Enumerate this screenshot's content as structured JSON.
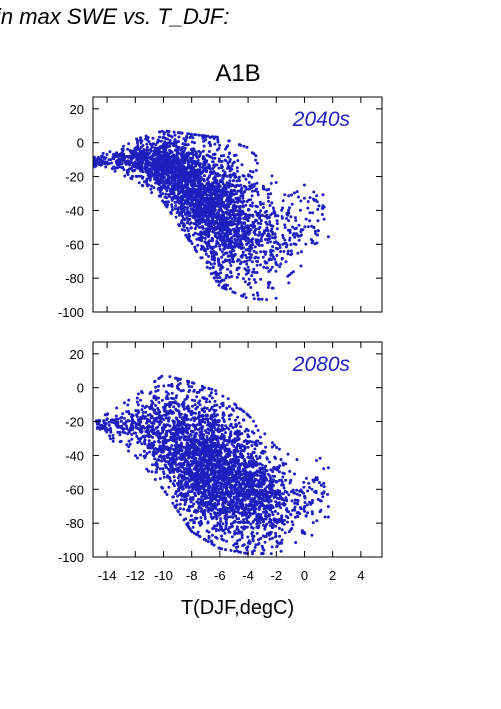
{
  "figure": {
    "title": "in max SWE vs. T_DJF:",
    "scenario": "A1B",
    "marker_color": "#1f1fbf"
  },
  "chart_data": [
    {
      "type": "scatter",
      "panel_label": "2040s",
      "xlim": [
        -15,
        5.5
      ],
      "ylim": [
        -100,
        27
      ],
      "xticks": [
        -14,
        -12,
        -10,
        -8,
        -6,
        -4,
        -2,
        0,
        2,
        4
      ],
      "yticks": [
        20,
        0,
        -20,
        -40,
        -60,
        -80,
        -100
      ],
      "xlabel": "",
      "ylabel": "",
      "grid": false,
      "point_cloud": {
        "count": 3200,
        "upper_edge": [
          [
            -15,
            -8
          ],
          [
            -12,
            2
          ],
          [
            -10,
            7
          ],
          [
            -8,
            5
          ],
          [
            -6,
            3
          ],
          [
            -4,
            -3
          ],
          [
            -2,
            -20
          ],
          [
            0,
            -25
          ],
          [
            1.5,
            -20
          ]
        ],
        "lower_edge": [
          [
            -15,
            -14
          ],
          [
            -12,
            -22
          ],
          [
            -10,
            -35
          ],
          [
            -8,
            -60
          ],
          [
            -6,
            -85
          ],
          [
            -4,
            -92
          ],
          [
            -2,
            -93
          ],
          [
            0,
            -70
          ],
          [
            1.5,
            -62
          ]
        ],
        "density_center": [
          -7.5,
          -30
        ]
      }
    },
    {
      "type": "scatter",
      "panel_label": "2080s",
      "xlim": [
        -15,
        5.5
      ],
      "ylim": [
        -100,
        27
      ],
      "xticks": [
        -14,
        -12,
        -10,
        -8,
        -6,
        -4,
        -2,
        0,
        2,
        4
      ],
      "xticklabels": [
        "-14",
        "-12",
        "-10",
        "-8",
        "-6",
        "-4",
        "-2",
        "0",
        "2",
        "4"
      ],
      "yticks": [
        20,
        0,
        -20,
        -40,
        -60,
        -80,
        -100
      ],
      "xlabel": "T(DJF,degC)",
      "ylabel": "",
      "grid": false,
      "point_cloud": {
        "count": 3400,
        "upper_edge": [
          [
            -15,
            -20
          ],
          [
            -12,
            -5
          ],
          [
            -10,
            8
          ],
          [
            -8,
            5
          ],
          [
            -6,
            0
          ],
          [
            -4,
            -15
          ],
          [
            -2,
            -35
          ],
          [
            0,
            -45
          ],
          [
            1.5,
            -35
          ]
        ],
        "lower_edge": [
          [
            -15,
            -24
          ],
          [
            -12,
            -40
          ],
          [
            -10,
            -60
          ],
          [
            -8,
            -85
          ],
          [
            -6,
            -95
          ],
          [
            -4,
            -98
          ],
          [
            -2,
            -98
          ],
          [
            0,
            -90
          ],
          [
            1.5,
            -82
          ]
        ],
        "density_center": [
          -6.5,
          -62
        ]
      }
    }
  ]
}
